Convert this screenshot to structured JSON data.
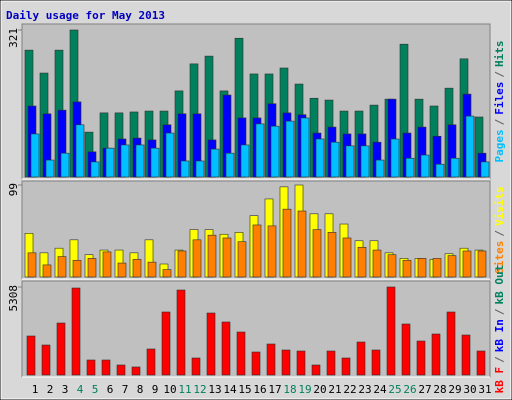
{
  "chart_data": {
    "type": "bar",
    "title": "Daily usage for May 2013",
    "categories": [
      "1",
      "2",
      "3",
      "4",
      "5",
      "6",
      "7",
      "8",
      "9",
      "10",
      "11",
      "12",
      "13",
      "14",
      "15",
      "16",
      "17",
      "18",
      "19",
      "20",
      "21",
      "22",
      "23",
      "24",
      "25",
      "26",
      "27",
      "28",
      "29",
      "30",
      "31"
    ],
    "weekend": [
      3,
      4,
      10,
      11,
      17,
      18,
      24,
      25
    ],
    "weekend_color": "#00805c",
    "label_color": "#000000",
    "separator": "/",
    "panels": [
      {
        "ylim": [
          0,
          321
        ],
        "yticks": [
          321
        ],
        "series": [
          {
            "name": "Hits",
            "color": "#00805c",
            "values": [
              277,
              227,
              277,
              321,
              98,
              140,
              140,
              142,
              144,
              144,
              188,
              247,
              264,
              188,
              303,
              225,
              225,
              238,
              203,
              172,
              168,
              144,
              144,
              157,
              170,
              290,
              170,
              155,
              194,
              258,
              131
            ]
          },
          {
            "name": "Files",
            "color": "#0000ff",
            "values": [
              155,
              138,
              146,
              164,
              55,
              63,
              83,
              85,
              81,
              114,
              138,
              138,
              81,
              179,
              129,
              129,
              160,
              140,
              136,
              96,
              109,
              94,
              94,
              76,
              170,
              96,
              109,
              89,
              114,
              181,
              52
            ]
          },
          {
            "name": "Pages",
            "color": "#00c0ff",
            "values": [
              94,
              37,
              52,
              114,
              33,
              63,
              70,
              70,
              63,
              96,
              35,
              35,
              61,
              52,
              70,
              116,
              111,
              122,
              129,
              83,
              76,
              68,
              68,
              37,
              83,
              41,
              48,
              28,
              41,
              133,
              33
            ]
          }
        ]
      },
      {
        "ylim": [
          0,
          99
        ],
        "yticks": [
          99
        ],
        "series": [
          {
            "name": "Visits",
            "color": "#ffff00",
            "values": [
              47,
              26,
              31,
              40,
              24,
              29,
              29,
              26,
              40,
              14,
              29,
              51,
              51,
              46,
              48,
              66,
              84,
              97,
              99,
              68,
              68,
              57,
              39,
              39,
              26,
              20,
              20,
              19,
              25,
              31,
              29
            ]
          },
          {
            "name": "Sites",
            "color": "#ff8000",
            "values": [
              26,
              13,
              22,
              18,
              20,
              27,
              15,
              19,
              16,
              8,
              28,
              40,
              45,
              42,
              38,
              56,
              55,
              73,
              71,
              51,
              48,
              42,
              32,
              29,
              24,
              18,
              20,
              20,
              23,
              28,
              28
            ]
          }
        ]
      },
      {
        "ylim": [
          0,
          5308
        ],
        "yticks": [
          5308
        ],
        "series": [
          {
            "name": "kB F",
            "color": "#ff0000",
            "values": [
              2352,
              1809,
              3136,
              5247,
              905,
              905,
              603,
              483,
              1568,
              3800,
              5126,
              1025,
              3739,
              3197,
              2593,
              1387,
              1869,
              1508,
              1447,
              603,
              1447,
              1025,
              1990,
              1508,
              5308,
              3076,
              2050,
              2473,
              3800,
              2412,
              1447
            ]
          }
        ],
        "extra_legend": [
          {
            "name": "kB In",
            "color": "#0000ff"
          },
          {
            "name": "kB Out",
            "color": "#00805c"
          }
        ]
      }
    ]
  }
}
